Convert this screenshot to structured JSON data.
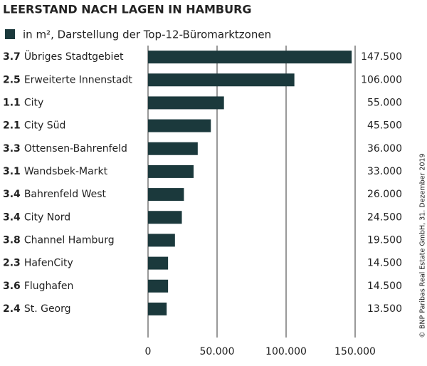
{
  "chart_data": {
    "type": "bar",
    "orientation": "horizontal",
    "title": "LEERSTAND NACH LAGEN IN HAMBURG",
    "legend_label": "in m², Darstellung der Top-12-Büromarktzonen",
    "source": "© BNP Paribas Real Estate GmbH, 31. Dezember 2019",
    "codes": [
      "3.7",
      "2.5",
      "1.1",
      "2.1",
      "3.3",
      "3.1",
      "3.4",
      "3.4",
      "3.8",
      "2.3",
      "3.6",
      "2.4"
    ],
    "categories": [
      "Übriges Stadtgebiet",
      "Erweiterte Innenstadt",
      "City",
      "City Süd",
      "Ottensen-Bahrenfeld",
      "Wandsbek-Markt",
      "Bahrenfeld West",
      "City Nord",
      "Channel Hamburg",
      "HafenCity",
      "Flughafen",
      "St. Georg"
    ],
    "values": [
      147500,
      106000,
      55000,
      45500,
      36000,
      33000,
      26000,
      24500,
      19500,
      14500,
      14500,
      13500
    ],
    "value_labels": [
      "147.500",
      "106.000",
      "55.000",
      "45.500",
      "36.000",
      "33.000",
      "26.000",
      "24.500",
      "19.500",
      "14.500",
      "14.500",
      "13.500"
    ],
    "color": "#1b393c",
    "xlim": [
      0,
      150000
    ],
    "xticks": [
      0,
      {
        "value": 50000,
        "label": "50.000"
      },
      {
        "value": 100000,
        "label": "100.000"
      },
      {
        "value": 150000,
        "label": "150.000"
      }
    ],
    "grid": true
  }
}
